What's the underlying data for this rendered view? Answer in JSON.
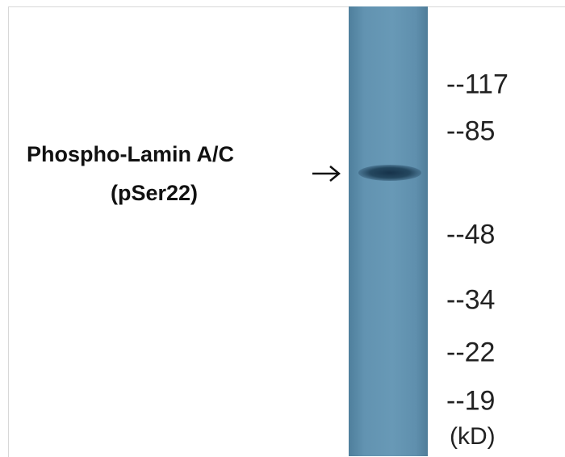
{
  "label": {
    "lines": [
      "Phospho-Lamin A/C",
      "(pSer22)"
    ]
  },
  "markers": [
    "--117",
    "--85",
    "--48",
    "--34",
    "--22",
    "--19"
  ],
  "unit": "(kD)"
}
